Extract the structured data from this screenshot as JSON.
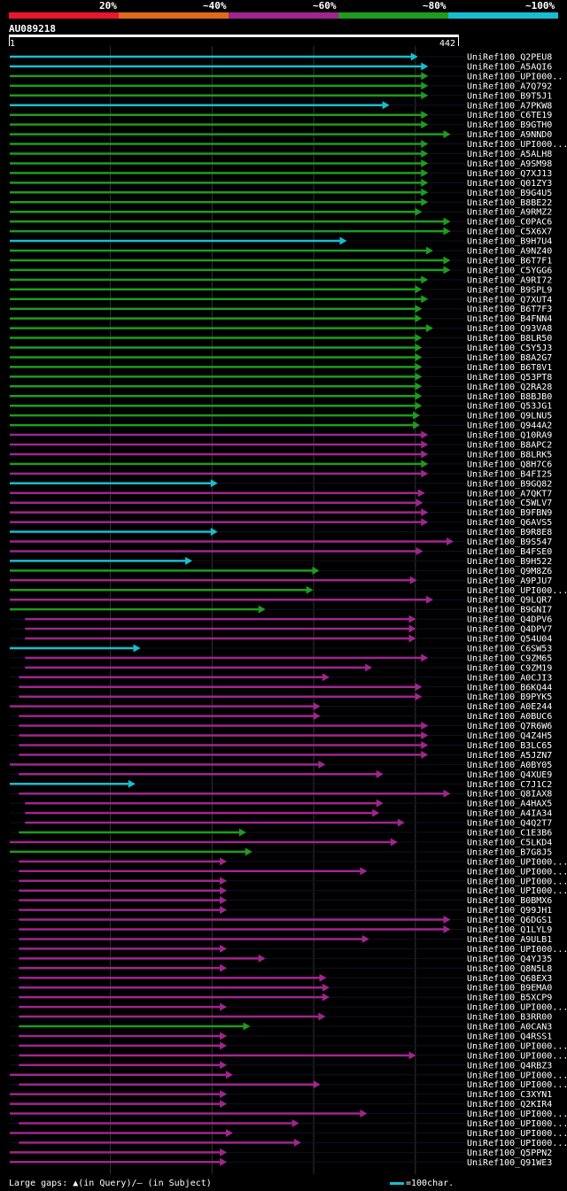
{
  "legend": {
    "labels": [
      "20%",
      "~40%",
      "~60%",
      "~80%",
      "~100%"
    ],
    "colors": [
      "#e8172e",
      "#e0681d",
      "#a0258f",
      "#1e9c1e",
      "#17becf"
    ]
  },
  "query": {
    "name": "AU089218",
    "start": "1",
    "end": "442"
  },
  "footer": {
    "text": "Large gaps: ▲(in Query)/— (in Subject)",
    "scale": "=100char."
  },
  "chart_data": {
    "type": "alignment",
    "query_length": 442,
    "color_bins": {
      "cyan": "~100%",
      "green": "~80%",
      "magenta": "~60%",
      "orange": "~40%",
      "red": "20%"
    },
    "hits": [
      {
        "name": "UniRef100_Q2PEU8",
        "color": "cyan",
        "start": 1,
        "end": 400
      },
      {
        "name": "UniRef100_A5AQI6",
        "color": "cyan",
        "start": 1,
        "end": 410
      },
      {
        "name": "UniRef100_UPI000..",
        "color": "green",
        "start": 1,
        "end": 410
      },
      {
        "name": "UniRef100_A7Q792",
        "color": "green",
        "start": 1,
        "end": 410
      },
      {
        "name": "UniRef100_B9T5J1",
        "color": "green",
        "start": 1,
        "end": 410
      },
      {
        "name": "UniRef100_A7PKW8",
        "color": "cyan",
        "start": 1,
        "end": 372
      },
      {
        "name": "UniRef100_C6TE19",
        "color": "green",
        "start": 1,
        "end": 410
      },
      {
        "name": "UniRef100_B9GTH0",
        "color": "green",
        "start": 1,
        "end": 410
      },
      {
        "name": "UniRef100_A9NND0",
        "color": "green",
        "start": 1,
        "end": 432
      },
      {
        "name": "UniRef100_UPI000...",
        "color": "green",
        "start": 1,
        "end": 410
      },
      {
        "name": "UniRef100_A5ALH8",
        "color": "green",
        "start": 1,
        "end": 410
      },
      {
        "name": "UniRef100_A9SM98",
        "color": "green",
        "start": 1,
        "end": 410
      },
      {
        "name": "UniRef100_Q7XJ13",
        "color": "green",
        "start": 1,
        "end": 410
      },
      {
        "name": "UniRef100_Q01ZY3",
        "color": "green",
        "start": 1,
        "end": 410
      },
      {
        "name": "UniRef100_B9G4U5",
        "color": "green",
        "start": 1,
        "end": 410
      },
      {
        "name": "UniRef100_B8BE22",
        "color": "green",
        "start": 1,
        "end": 410
      },
      {
        "name": "UniRef100_A9RMZ2",
        "color": "green",
        "start": 1,
        "end": 404
      },
      {
        "name": "UniRef100_C0PAC6",
        "color": "green",
        "start": 1,
        "end": 432
      },
      {
        "name": "UniRef100_C5X6X7",
        "color": "green",
        "start": 1,
        "end": 432
      },
      {
        "name": "UniRef100_B9H7U4",
        "color": "cyan",
        "start": 1,
        "end": 330
      },
      {
        "name": "UniRef100_A9NZ40",
        "color": "green",
        "start": 1,
        "end": 415
      },
      {
        "name": "UniRef100_B6T7F1",
        "color": "green",
        "start": 1,
        "end": 432
      },
      {
        "name": "UniRef100_C5YGG6",
        "color": "green",
        "start": 1,
        "end": 432
      },
      {
        "name": "UniRef100_A9RI72",
        "color": "green",
        "start": 1,
        "end": 410
      },
      {
        "name": "UniRef100_B9SPL9",
        "color": "green",
        "start": 1,
        "end": 404
      },
      {
        "name": "UniRef100_Q7XUT4",
        "color": "green",
        "start": 1,
        "end": 410
      },
      {
        "name": "UniRef100_B6T7F3",
        "color": "green",
        "start": 1,
        "end": 404
      },
      {
        "name": "UniRef100_B4FNN4",
        "color": "green",
        "start": 1,
        "end": 404
      },
      {
        "name": "UniRef100_Q93VA8",
        "color": "green",
        "start": 1,
        "end": 415
      },
      {
        "name": "UniRef100_B8LR50",
        "color": "green",
        "start": 1,
        "end": 404
      },
      {
        "name": "UniRef100_C5Y5J3",
        "color": "green",
        "start": 1,
        "end": 404
      },
      {
        "name": "UniRef100_B8A2G7",
        "color": "green",
        "start": 1,
        "end": 404
      },
      {
        "name": "UniRef100_B6T8V1",
        "color": "green",
        "start": 1,
        "end": 404
      },
      {
        "name": "UniRef100_Q53PT8",
        "color": "green",
        "start": 1,
        "end": 404
      },
      {
        "name": "UniRef100_Q2RA28",
        "color": "green",
        "start": 1,
        "end": 404
      },
      {
        "name": "UniRef100_B8BJB0",
        "color": "green",
        "start": 1,
        "end": 404
      },
      {
        "name": "UniRef100_Q53JG1",
        "color": "green",
        "start": 1,
        "end": 404
      },
      {
        "name": "UniRef100_Q9LNU5",
        "color": "green",
        "start": 1,
        "end": 402
      },
      {
        "name": "UniRef100_Q944A2",
        "color": "green",
        "start": 1,
        "end": 402
      },
      {
        "name": "UniRef100_Q10RA9",
        "color": "magenta",
        "start": 1,
        "end": 410
      },
      {
        "name": "UniRef100_B8APC2",
        "color": "magenta",
        "start": 1,
        "end": 410
      },
      {
        "name": "UniRef100_B8LRK5",
        "color": "magenta",
        "start": 1,
        "end": 410
      },
      {
        "name": "UniRef100_Q8H7C6",
        "color": "green",
        "start": 1,
        "end": 410
      },
      {
        "name": "UniRef100_B4FI25",
        "color": "magenta",
        "start": 1,
        "end": 410
      },
      {
        "name": "UniRef100_B9GQ82",
        "color": "cyan",
        "start": 1,
        "end": 203
      },
      {
        "name": "UniRef100_A7QKT7",
        "color": "magenta",
        "start": 1,
        "end": 407
      },
      {
        "name": "UniRef100_C5WLV7",
        "color": "magenta",
        "start": 1,
        "end": 405
      },
      {
        "name": "UniRef100_B9FBN9",
        "color": "magenta",
        "start": 1,
        "end": 410
      },
      {
        "name": "UniRef100_Q6AVS5",
        "color": "magenta",
        "start": 1,
        "end": 410
      },
      {
        "name": "UniRef100_B9R8E8",
        "color": "cyan",
        "start": 1,
        "end": 203
      },
      {
        "name": "UniRef100_B9S547",
        "color": "magenta",
        "start": 1,
        "end": 435
      },
      {
        "name": "UniRef100_B4FSE0",
        "color": "magenta",
        "start": 1,
        "end": 405
      },
      {
        "name": "UniRef100_B9H522",
        "color": "cyan",
        "start": 1,
        "end": 178
      },
      {
        "name": "UniRef100_Q9M8Z6",
        "color": "green",
        "start": 1,
        "end": 303
      },
      {
        "name": "UniRef100_A9PJU7",
        "color": "magenta",
        "start": 1,
        "end": 399
      },
      {
        "name": "UniRef100_UPI000...",
        "color": "green",
        "start": 1,
        "end": 297
      },
      {
        "name": "UniRef100_Q9LQR7",
        "color": "magenta",
        "start": 1,
        "end": 415
      },
      {
        "name": "UniRef100_B9GNI7",
        "color": "green",
        "start": 1,
        "end": 250
      },
      {
        "name": "UniRef100_Q4DPV6",
        "color": "magenta",
        "start": 16,
        "end": 398
      },
      {
        "name": "UniRef100_Q4DPV7",
        "color": "magenta",
        "start": 16,
        "end": 398
      },
      {
        "name": "UniRef100_Q54U04",
        "color": "magenta",
        "start": 16,
        "end": 398
      },
      {
        "name": "UniRef100_C6SW53",
        "color": "cyan",
        "start": 1,
        "end": 127
      },
      {
        "name": "UniRef100_C9ZM65",
        "color": "magenta",
        "start": 16,
        "end": 410
      },
      {
        "name": "UniRef100_C9ZM19",
        "color": "magenta",
        "start": 16,
        "end": 355
      },
      {
        "name": "UniRef100_A0CJI3",
        "color": "magenta",
        "start": 10,
        "end": 313
      },
      {
        "name": "UniRef100_B6KQ44",
        "color": "magenta",
        "start": 10,
        "end": 404
      },
      {
        "name": "UniRef100_B9PYK5",
        "color": "magenta",
        "start": 10,
        "end": 404
      },
      {
        "name": "UniRef100_A0E244",
        "color": "magenta",
        "start": 1,
        "end": 304
      },
      {
        "name": "UniRef100_A0BUC6",
        "color": "magenta",
        "start": 10,
        "end": 304
      },
      {
        "name": "UniRef100_Q7R6W6",
        "color": "magenta",
        "start": 10,
        "end": 410
      },
      {
        "name": "UniRef100_Q4Z4H5",
        "color": "magenta",
        "start": 10,
        "end": 410
      },
      {
        "name": "UniRef100_B3LC65",
        "color": "magenta",
        "start": 10,
        "end": 410
      },
      {
        "name": "UniRef100_A5JZN7",
        "color": "magenta",
        "start": 10,
        "end": 410
      },
      {
        "name": "UniRef100_A0BY05",
        "color": "magenta",
        "start": 1,
        "end": 309
      },
      {
        "name": "UniRef100_Q4XUE9",
        "color": "magenta",
        "start": 10,
        "end": 366
      },
      {
        "name": "UniRef100_C7J1C2",
        "color": "cyan",
        "start": 1,
        "end": 122
      },
      {
        "name": "UniRef100_Q8IAX8",
        "color": "magenta",
        "start": 10,
        "end": 432
      },
      {
        "name": "UniRef100_A4HAX5",
        "color": "magenta",
        "start": 16,
        "end": 366
      },
      {
        "name": "UniRef100_A4IA34",
        "color": "magenta",
        "start": 16,
        "end": 362
      },
      {
        "name": "UniRef100_Q4Q2T7",
        "color": "magenta",
        "start": 16,
        "end": 387
      },
      {
        "name": "UniRef100_C1E3B6",
        "color": "green",
        "start": 10,
        "end": 231
      },
      {
        "name": "UniRef100_C5LKD4",
        "color": "magenta",
        "start": 1,
        "end": 380
      },
      {
        "name": "UniRef100_B7G8J5",
        "color": "green",
        "start": 1,
        "end": 237
      },
      {
        "name": "UniRef100_UPI000...",
        "color": "magenta",
        "start": 10,
        "end": 212
      },
      {
        "name": "UniRef100_UPI000...",
        "color": "magenta",
        "start": 10,
        "end": 350
      },
      {
        "name": "UniRef100_UPI000...",
        "color": "magenta",
        "start": 10,
        "end": 212
      },
      {
        "name": "UniRef100_UPI000...",
        "color": "magenta",
        "start": 10,
        "end": 212
      },
      {
        "name": "UniRef100_B0BMX6",
        "color": "magenta",
        "start": 10,
        "end": 212
      },
      {
        "name": "UniRef100_Q99JH1",
        "color": "magenta",
        "start": 10,
        "end": 212
      },
      {
        "name": "UniRef100_Q6DGS1",
        "color": "magenta",
        "start": 10,
        "end": 432
      },
      {
        "name": "UniRef100_Q1LYL9",
        "color": "magenta",
        "start": 10,
        "end": 432
      },
      {
        "name": "UniRef100_A9ULB1",
        "color": "magenta",
        "start": 10,
        "end": 352
      },
      {
        "name": "UniRef100_UPI000...",
        "color": "magenta",
        "start": 10,
        "end": 212
      },
      {
        "name": "UniRef100_Q4YJ35",
        "color": "magenta",
        "start": 10,
        "end": 250
      },
      {
        "name": "UniRef100_Q8N5L8",
        "color": "magenta",
        "start": 10,
        "end": 212
      },
      {
        "name": "UniRef100_Q68EX3",
        "color": "magenta",
        "start": 10,
        "end": 310
      },
      {
        "name": "UniRef100_B9EMA0",
        "color": "magenta",
        "start": 10,
        "end": 313
      },
      {
        "name": "UniRef100_B5XCP9",
        "color": "magenta",
        "start": 10,
        "end": 313
      },
      {
        "name": "UniRef100_UPI000...",
        "color": "magenta",
        "start": 10,
        "end": 212
      },
      {
        "name": "UniRef100_B3RR00",
        "color": "magenta",
        "start": 10,
        "end": 309
      },
      {
        "name": "UniRef100_A0CAN3",
        "color": "green",
        "start": 10,
        "end": 235
      },
      {
        "name": "UniRef100_Q4RSS1",
        "color": "magenta",
        "start": 10,
        "end": 212
      },
      {
        "name": "UniRef100_UPI000...",
        "color": "magenta",
        "start": 10,
        "end": 212
      },
      {
        "name": "UniRef100_UPI000...",
        "color": "magenta",
        "start": 10,
        "end": 398
      },
      {
        "name": "UniRef100_Q4RBZ3",
        "color": "magenta",
        "start": 10,
        "end": 212
      },
      {
        "name": "UniRef100_UPI000...",
        "color": "magenta",
        "start": 1,
        "end": 218
      },
      {
        "name": "UniRef100_UPI000...",
        "color": "magenta",
        "start": 10,
        "end": 304
      },
      {
        "name": "UniRef100_C3XYN1",
        "color": "magenta",
        "start": 1,
        "end": 212
      },
      {
        "name": "UniRef100_Q2KIR4",
        "color": "magenta",
        "start": 1,
        "end": 212
      },
      {
        "name": "UniRef100_UPI000...",
        "color": "magenta",
        "start": 1,
        "end": 350
      },
      {
        "name": "UniRef100_UPI000...",
        "color": "magenta",
        "start": 10,
        "end": 283
      },
      {
        "name": "UniRef100_UPI000...",
        "color": "magenta",
        "start": 1,
        "end": 218
      },
      {
        "name": "UniRef100_UPI000...",
        "color": "magenta",
        "start": 10,
        "end": 285
      },
      {
        "name": "UniRef100_Q5PPN2",
        "color": "magenta",
        "start": 1,
        "end": 212
      },
      {
        "name": "UniRef100_Q91WE3",
        "color": "magenta",
        "start": 1,
        "end": 212
      }
    ]
  }
}
